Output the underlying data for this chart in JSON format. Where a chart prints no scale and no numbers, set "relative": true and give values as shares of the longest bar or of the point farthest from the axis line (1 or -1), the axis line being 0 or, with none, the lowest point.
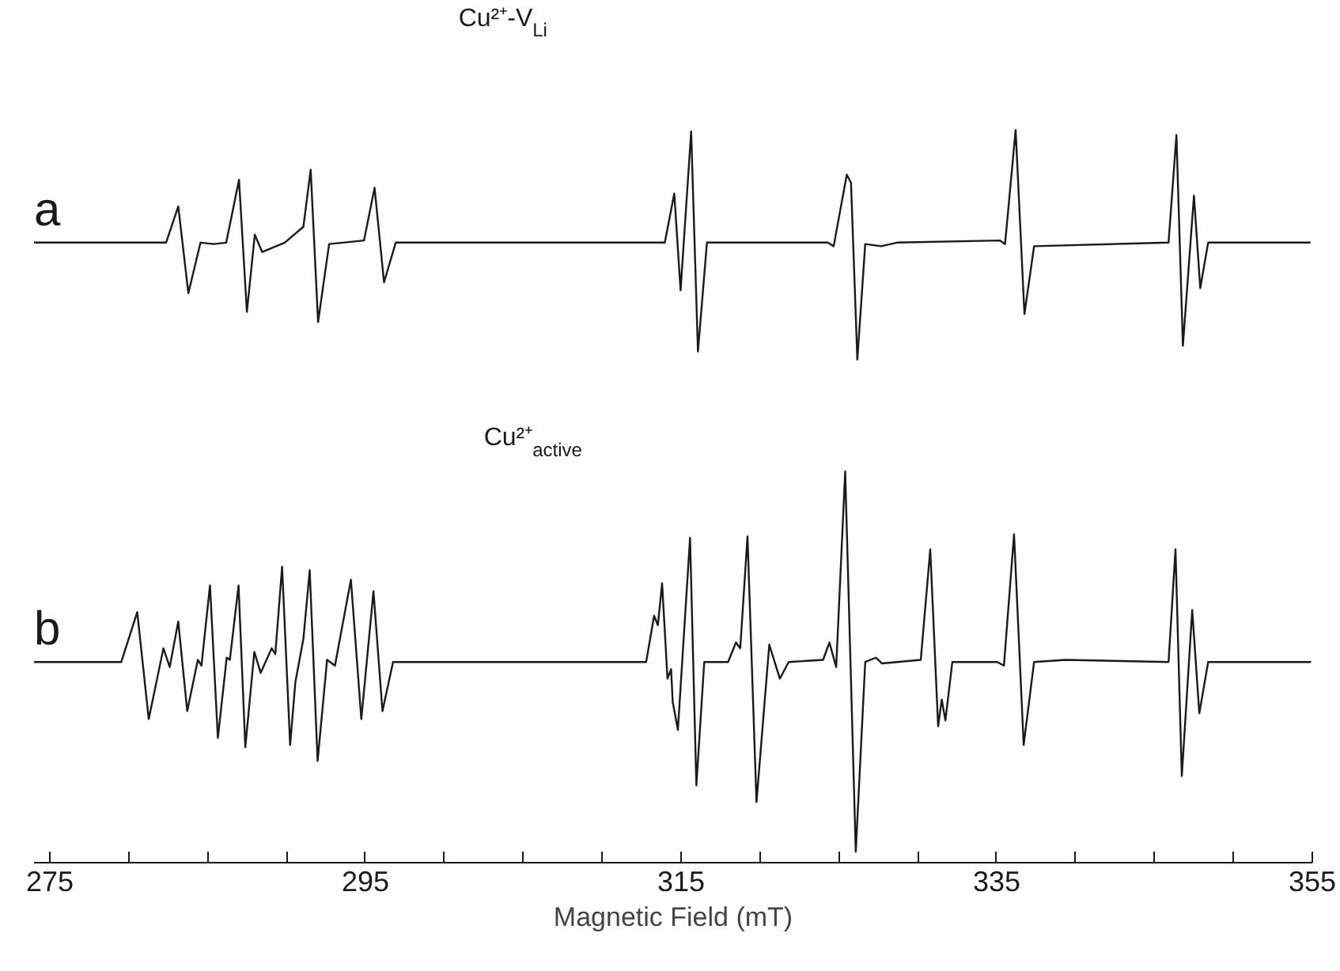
{
  "chart_data": {
    "type": "line",
    "relative": true,
    "xlim": [
      274,
      355
    ],
    "xlabel": "Magnetic Field (mT)",
    "tick_labels": "x",
    "annotations": [
      "Cu²⁺-V$_{Li}$",
      "a",
      "Cu²⁺$_{active}$",
      "b"
    ],
    "xticks": [
      275,
      {
        "value": 280,
        "label": null
      },
      {
        "value": 285,
        "label": null
      },
      {
        "value": 290,
        "label": null
      },
      295,
      {
        "value": 300,
        "label": null
      },
      {
        "value": 305,
        "label": null
      },
      {
        "value": 310,
        "label": null
      },
      315,
      {
        "value": 320,
        "label": null
      },
      {
        "value": 325,
        "label": null
      },
      {
        "value": 330,
        "label": null
      },
      335,
      {
        "value": 340,
        "label": null
      },
      {
        "value": 345,
        "label": null
      },
      {
        "value": 350,
        "label": null
      },
      355
    ],
    "series": [
      {
        "color": "#1a1a1a",
        "x": [
          274,
          282.37,
          283.14,
          283.78,
          284.55,
          285.38,
          286.18,
          286.99,
          287.49,
          287.99,
          288.46,
          289.89,
          291.07,
          291.53,
          292.0,
          292.7,
          294.91,
          295.58,
          296.18,
          296.92,
          313.97,
          314.57,
          314.97,
          315.64,
          316.07,
          316.64,
          324.3,
          324.67,
          325.5,
          325.77,
          326.17,
          326.67,
          327.68,
          328.68,
          335.2,
          335.53,
          336.2,
          336.76,
          337.37,
          345.89,
          346.39,
          346.8,
          347.5,
          347.9,
          348.4,
          354.89
        ],
        "values": [
          0.844,
          0.844,
          0.894,
          0.774,
          0.844,
          0.842,
          0.844,
          0.931,
          0.748,
          0.855,
          0.831,
          0.844,
          0.866,
          0.945,
          0.734,
          0.842,
          0.847,
          0.92,
          0.789,
          0.844,
          0.844,
          0.912,
          0.778,
          0.998,
          0.693,
          0.844,
          0.844,
          0.839,
          0.938,
          0.927,
          0.682,
          0.842,
          0.839,
          0.844,
          0.847,
          0.842,
          1,
          0.745,
          0.839,
          0.844,
          0.993,
          0.701,
          0.909,
          0.781,
          0.844,
          0.844
        ]
      },
      {
        "color": "#1a1a1a",
        "x": [
          274,
          279.53,
          280.54,
          281.27,
          282.2,
          282.6,
          283.14,
          283.71,
          284.38,
          284.61,
          285.15,
          285.65,
          286.21,
          286.41,
          286.96,
          287.39,
          287.96,
          288.36,
          289.06,
          289.29,
          289.72,
          290.23,
          290.56,
          291.07,
          291.47,
          291.97,
          292.57,
          293.07,
          294.08,
          294.74,
          295.51,
          296.08,
          296.75,
          312.79,
          313.29,
          313.53,
          313.8,
          314.14,
          314.37,
          314.47,
          314.8,
          315.57,
          315.97,
          316.47,
          317.98,
          318.48,
          318.75,
          319.21,
          319.78,
          320.59,
          321.26,
          321.82,
          324.0,
          324.4,
          324.83,
          325.4,
          326.07,
          326.67,
          327.34,
          327.74,
          330.19,
          330.79,
          331.29,
          331.52,
          331.75,
          332.19,
          335.03,
          335.46,
          336.1,
          336.71,
          337.37,
          339.37,
          345.89,
          346.33,
          346.73,
          347.39,
          347.84,
          348.4,
          354.92
        ],
        "values": [
          0.263,
          0.263,
          0.332,
          0.184,
          0.282,
          0.256,
          0.319,
          0.195,
          0.266,
          0.258,
          0.369,
          0.158,
          0.269,
          0.266,
          0.369,
          0.145,
          0.277,
          0.248,
          0.282,
          0.274,
          0.395,
          0.148,
          0.235,
          0.295,
          0.39,
          0.126,
          0.266,
          0.258,
          0.377,
          0.184,
          0.361,
          0.195,
          0.263,
          0.263,
          0.327,
          0.314,
          0.372,
          0.24,
          0.253,
          0.208,
          0.169,
          0.435,
          0.092,
          0.263,
          0.263,
          0.29,
          0.282,
          0.437,
          0.069,
          0.287,
          0.24,
          0.263,
          0.266,
          0.29,
          0.256,
          0.527,
          0,
          0.263,
          0.269,
          0.261,
          0.266,
          0.419,
          0.174,
          0.211,
          0.182,
          0.263,
          0.263,
          0.258,
          0.44,
          0.148,
          0.263,
          0.266,
          0.263,
          0.419,
          0.105,
          0.335,
          0.192,
          0.263,
          0.263
        ]
      }
    ]
  }
}
